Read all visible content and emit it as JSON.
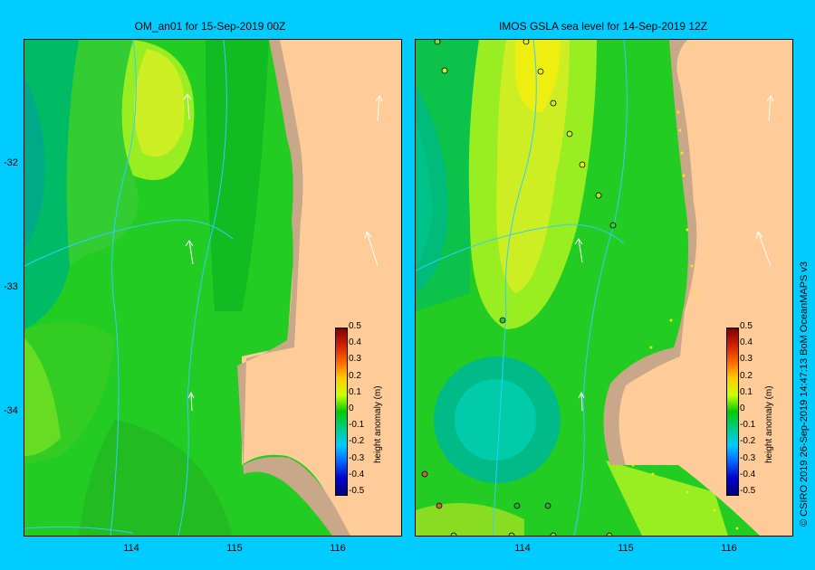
{
  "panels": [
    {
      "title": "OM_an01  for 15-Sep-2019 00Z",
      "colorbar_title": "height anomaly (m)"
    },
    {
      "title": "IMOS GSLA sea level   for 14-Sep-2019 12Z",
      "colorbar_title": "height anomaly (m)"
    }
  ],
  "axes": {
    "x_ticks": [
      "114",
      "115",
      "116"
    ],
    "y_ticks": [
      "-32",
      "-33",
      "-34"
    ]
  },
  "colorbar": {
    "labels": [
      "0.5",
      "0.4",
      "0.3",
      "0.2",
      "0.1",
      "0",
      "-0.1",
      "-0.2",
      "-0.3",
      "-0.4",
      "-0.5"
    ],
    "colors": [
      "#800000",
      "#d02000",
      "#ff6600",
      "#ffcc00",
      "#ccff00",
      "#00cc00",
      "#00cc88",
      "#00ccff",
      "#0066ff",
      "#0000cc",
      "#000080"
    ]
  },
  "credit": "© CSIRO 2019   26-Sep-2019 14:47:13 BoM OceanMAPS v3",
  "colors": {
    "background": "#00ccff",
    "land": "#ffcc99",
    "shelf": "#c8a888",
    "river_lines": "#33ccff"
  }
}
